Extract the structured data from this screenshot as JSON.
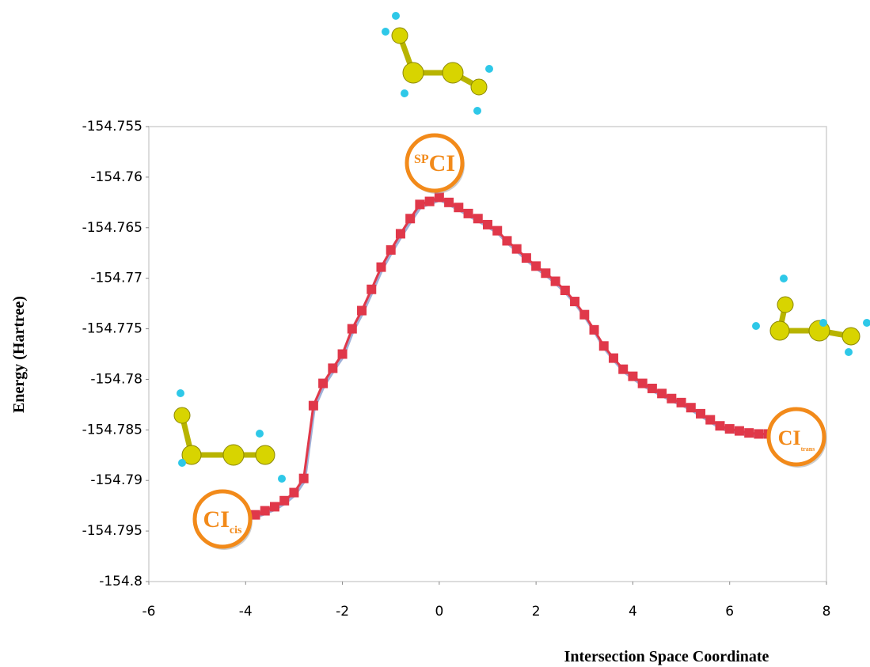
{
  "chart_data": {
    "type": "line",
    "x_label": "Intersection Space Coordinate",
    "y_label": "Energy (Hartree)",
    "x": [
      -3.8,
      -3.6,
      -3.4,
      -3.2,
      -3.0,
      -2.8,
      -2.6,
      -2.4,
      -2.2,
      -2.0,
      -1.8,
      -1.6,
      -1.4,
      -1.2,
      -1.0,
      -0.8,
      -0.6,
      -0.4,
      -0.2,
      0.0,
      0.2,
      0.4,
      0.6,
      0.8,
      1.0,
      1.2,
      1.4,
      1.6,
      1.8,
      2.0,
      2.2,
      2.4,
      2.6,
      2.8,
      3.0,
      3.2,
      3.4,
      3.6,
      3.8,
      4.0,
      4.2,
      4.4,
      4.6,
      4.8,
      5.0,
      5.2,
      5.4,
      5.6,
      5.8,
      6.0,
      6.2,
      6.4,
      6.6,
      6.8
    ],
    "series": [
      {
        "color": "#e0384a",
        "values": [
          -154.7934,
          -154.793,
          -154.7926,
          -154.792,
          -154.7912,
          -154.7898,
          -154.7826,
          -154.7804,
          -154.7789,
          -154.7775,
          -154.775,
          -154.7732,
          -154.7711,
          -154.7689,
          -154.7672,
          -154.7656,
          -154.7641,
          -154.7627,
          -154.7624,
          -154.762,
          -154.7625,
          -154.763,
          -154.7636,
          -154.7641,
          -154.7647,
          -154.7653,
          -154.7663,
          -154.7671,
          -154.768,
          -154.7688,
          -154.7695,
          -154.7703,
          -154.7712,
          -154.7723,
          -154.7736,
          -154.7751,
          -154.7767,
          -154.7779,
          -154.779,
          -154.7797,
          -154.7804,
          -154.7809,
          -154.7814,
          -154.7819,
          -154.7823,
          -154.7828,
          -154.7834,
          -154.784,
          -154.7846,
          -154.7849,
          -154.7851,
          -154.7853,
          -154.7854,
          -154.7854
        ]
      }
    ],
    "xlim": [
      -6,
      8
    ],
    "xticks": [
      -6,
      -4,
      -2,
      0,
      2,
      4,
      6,
      8
    ],
    "ylim": [
      -154.8,
      -154.755
    ],
    "yticks": [
      -154.755,
      -154.76,
      -154.765,
      -154.77,
      -154.775,
      -154.78,
      -154.785,
      -154.79,
      -154.795,
      -154.8
    ],
    "annotations": [
      {
        "sup": "SP",
        "text": "CI"
      },
      {
        "text": "CI",
        "sub": "cis"
      },
      {
        "text": "CI",
        "sub": "trans"
      }
    ]
  }
}
